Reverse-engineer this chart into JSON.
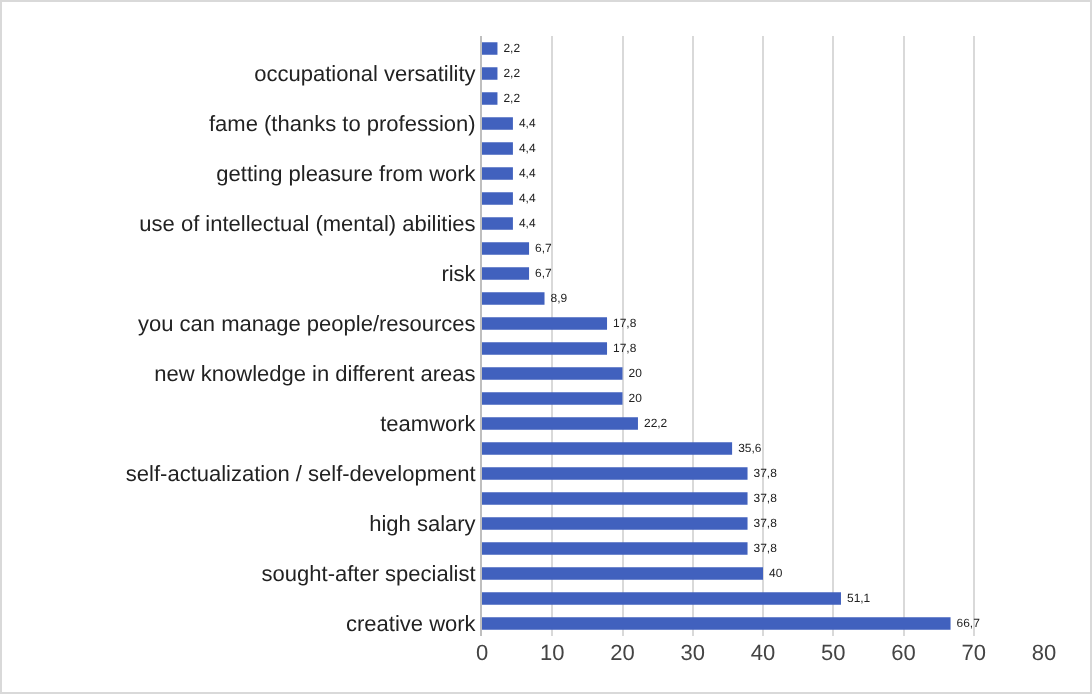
{
  "chart_data": {
    "type": "bar",
    "orientation": "horizontal",
    "categories": [
      null,
      "occupational versatility",
      null,
      "fame (thanks to profession)",
      null,
      "getting pleasure from work",
      null,
      "use of intellectual (mental) abilities",
      null,
      "risk",
      null,
      "you can manage people/resources",
      null,
      "new knowledge in different areas",
      null,
      "teamwork",
      null,
      "self-actualization / self-development",
      null,
      "high salary",
      null,
      "sought-after specialist",
      null,
      "creative work"
    ],
    "values": [
      2.2,
      2.2,
      2.2,
      4.4,
      4.4,
      4.4,
      4.4,
      4.4,
      6.7,
      6.7,
      8.9,
      17.8,
      17.8,
      20,
      20,
      22.2,
      35.6,
      37.8,
      37.8,
      37.8,
      37.8,
      40,
      51.1,
      66.7
    ],
    "value_labels": [
      "2,2",
      "2,2",
      "2,2",
      "4,4",
      "4,4",
      "4,4",
      "4,4",
      "4,4",
      "6,7",
      "6,7",
      "8,9",
      "17,8",
      "17,8",
      "20",
      "20",
      "22,2",
      "35,6",
      "37,8",
      "37,8",
      "37,8",
      "37,8",
      "40",
      "51,1",
      "66,7"
    ],
    "color": "#4161be",
    "xlim": [
      0,
      80
    ],
    "xticks": [
      0,
      10,
      20,
      30,
      40,
      50,
      60,
      70,
      80
    ],
    "grid": "x"
  }
}
